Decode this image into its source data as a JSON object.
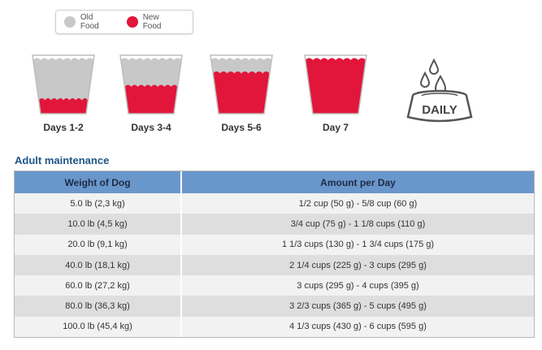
{
  "legend": {
    "items": [
      {
        "label": "Old Food",
        "color": "#c8c8c8"
      },
      {
        "label": "New Food",
        "color": "#e2153a"
      }
    ]
  },
  "cups": [
    {
      "label": "Days 1-2",
      "new_fraction": 0.25
    },
    {
      "label": "Days 3-4",
      "new_fraction": 0.5
    },
    {
      "label": "Days 5-6",
      "new_fraction": 0.75
    },
    {
      "label": "Day 7",
      "new_fraction": 1.0
    }
  ],
  "daily_icon": {
    "label": "DAILY"
  },
  "section_title": "Adult maintenance",
  "table": {
    "headers": [
      "Weight of Dog",
      "Amount per Day"
    ],
    "rows": [
      [
        "5.0 lb (2,3 kg)",
        "1/2 cup (50 g) - 5/8 cup (60 g)"
      ],
      [
        "10.0 lb (4,5 kg)",
        "3/4 cup (75 g) - 1 1/8 cups (110 g)"
      ],
      [
        "20.0 lb (9,1 kg)",
        "1 1/3 cups (130 g) - 1 3/4 cups (175 g)"
      ],
      [
        "40.0 lb (18,1 kg)",
        "2 1/4 cups (225 g) - 3 cups (295 g)"
      ],
      [
        "60.0 lb (27,2 kg)",
        "3 cups (295 g) - 4 cups (395 g)"
      ],
      [
        "80.0 lb (36,3 kg)",
        "3 2/3 cups (365 g) - 5 cups (495 g)"
      ],
      [
        "100.0 lb (45,4 kg)",
        "4 1/3 cups (430 g) - 6 cups (595 g)"
      ]
    ]
  }
}
